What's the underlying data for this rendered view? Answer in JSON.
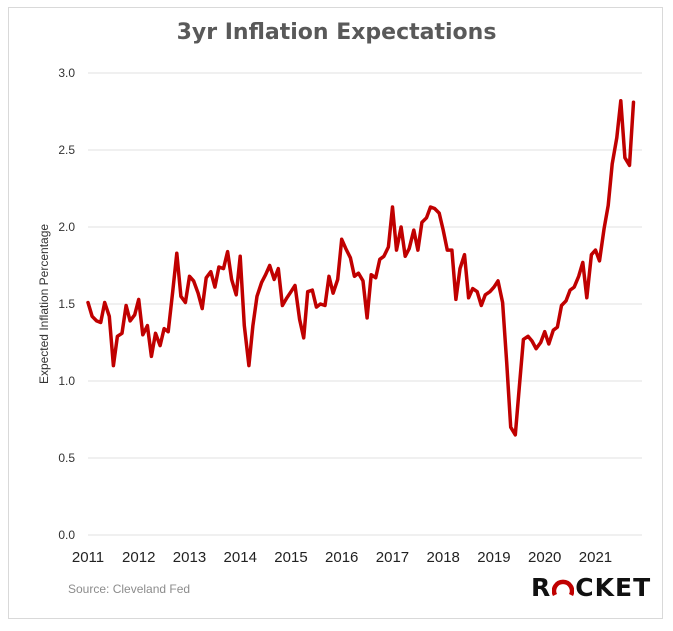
{
  "chart_data": {
    "type": "line",
    "title": "3yr Inflation Expectations",
    "ylabel": "Expected Inflation Percentage",
    "xlabel": "",
    "ylim": [
      0,
      3
    ],
    "yticks": [
      "0.0",
      "0.5",
      "1.0",
      "1.5",
      "2.0",
      "2.5",
      "3.0"
    ],
    "xticks": [
      "2011",
      "2012",
      "2013",
      "2014",
      "2015",
      "2016",
      "2017",
      "2018",
      "2019",
      "2020",
      "2021"
    ],
    "xlim": [
      2011,
      2021.917
    ],
    "grid": "horizontal",
    "series": [
      {
        "color": "#c00000",
        "points": [
          [
            2011.0,
            1.51
          ],
          [
            2011.08,
            1.42
          ],
          [
            2011.17,
            1.39
          ],
          [
            2011.25,
            1.38
          ],
          [
            2011.33,
            1.51
          ],
          [
            2011.42,
            1.42
          ],
          [
            2011.5,
            1.1
          ],
          [
            2011.58,
            1.29
          ],
          [
            2011.67,
            1.31
          ],
          [
            2011.75,
            1.49
          ],
          [
            2011.83,
            1.39
          ],
          [
            2011.92,
            1.43
          ],
          [
            2012.0,
            1.53
          ],
          [
            2012.08,
            1.3
          ],
          [
            2012.17,
            1.36
          ],
          [
            2012.25,
            1.16
          ],
          [
            2012.33,
            1.31
          ],
          [
            2012.42,
            1.23
          ],
          [
            2012.5,
            1.34
          ],
          [
            2012.58,
            1.32
          ],
          [
            2012.67,
            1.58
          ],
          [
            2012.75,
            1.83
          ],
          [
            2012.83,
            1.55
          ],
          [
            2012.92,
            1.51
          ],
          [
            2013.0,
            1.68
          ],
          [
            2013.08,
            1.65
          ],
          [
            2013.17,
            1.57
          ],
          [
            2013.25,
            1.47
          ],
          [
            2013.33,
            1.67
          ],
          [
            2013.42,
            1.71
          ],
          [
            2013.5,
            1.61
          ],
          [
            2013.58,
            1.74
          ],
          [
            2013.67,
            1.73
          ],
          [
            2013.75,
            1.84
          ],
          [
            2013.83,
            1.66
          ],
          [
            2013.92,
            1.56
          ],
          [
            2014.0,
            1.81
          ],
          [
            2014.08,
            1.36
          ],
          [
            2014.17,
            1.1
          ],
          [
            2014.25,
            1.36
          ],
          [
            2014.33,
            1.55
          ],
          [
            2014.42,
            1.64
          ],
          [
            2014.5,
            1.69
          ],
          [
            2014.58,
            1.75
          ],
          [
            2014.67,
            1.66
          ],
          [
            2014.75,
            1.73
          ],
          [
            2014.83,
            1.49
          ],
          [
            2014.92,
            1.54
          ],
          [
            2015.0,
            1.58
          ],
          [
            2015.08,
            1.62
          ],
          [
            2015.17,
            1.4
          ],
          [
            2015.25,
            1.28
          ],
          [
            2015.33,
            1.58
          ],
          [
            2015.42,
            1.59
          ],
          [
            2015.5,
            1.48
          ],
          [
            2015.58,
            1.5
          ],
          [
            2015.67,
            1.49
          ],
          [
            2015.75,
            1.68
          ],
          [
            2015.83,
            1.57
          ],
          [
            2015.92,
            1.66
          ],
          [
            2016.0,
            1.92
          ],
          [
            2016.08,
            1.86
          ],
          [
            2016.17,
            1.8
          ],
          [
            2016.25,
            1.68
          ],
          [
            2016.33,
            1.7
          ],
          [
            2016.42,
            1.65
          ],
          [
            2016.5,
            1.41
          ],
          [
            2016.58,
            1.69
          ],
          [
            2016.67,
            1.67
          ],
          [
            2016.75,
            1.79
          ],
          [
            2016.83,
            1.81
          ],
          [
            2016.92,
            1.87
          ],
          [
            2017.0,
            2.13
          ],
          [
            2017.08,
            1.85
          ],
          [
            2017.17,
            2.0
          ],
          [
            2017.25,
            1.81
          ],
          [
            2017.33,
            1.86
          ],
          [
            2017.42,
            1.98
          ],
          [
            2017.5,
            1.85
          ],
          [
            2017.58,
            2.03
          ],
          [
            2017.67,
            2.06
          ],
          [
            2017.75,
            2.13
          ],
          [
            2017.83,
            2.12
          ],
          [
            2017.92,
            2.09
          ],
          [
            2018.0,
            1.98
          ],
          [
            2018.08,
            1.85
          ],
          [
            2018.17,
            1.85
          ],
          [
            2018.25,
            1.53
          ],
          [
            2018.33,
            1.73
          ],
          [
            2018.42,
            1.82
          ],
          [
            2018.5,
            1.54
          ],
          [
            2018.58,
            1.6
          ],
          [
            2018.67,
            1.58
          ],
          [
            2018.75,
            1.49
          ],
          [
            2018.83,
            1.56
          ],
          [
            2018.92,
            1.58
          ],
          [
            2019.0,
            1.61
          ],
          [
            2019.08,
            1.65
          ],
          [
            2019.17,
            1.51
          ],
          [
            2019.25,
            1.12
          ],
          [
            2019.33,
            0.7
          ],
          [
            2019.42,
            0.65
          ],
          [
            2019.5,
            0.96
          ],
          [
            2019.58,
            1.27
          ],
          [
            2019.67,
            1.29
          ],
          [
            2019.75,
            1.26
          ],
          [
            2019.83,
            1.21
          ],
          [
            2019.92,
            1.25
          ],
          [
            2020.0,
            1.32
          ],
          [
            2020.08,
            1.24
          ],
          [
            2020.17,
            1.33
          ],
          [
            2020.25,
            1.35
          ],
          [
            2020.33,
            1.49
          ],
          [
            2020.42,
            1.52
          ],
          [
            2020.5,
            1.59
          ],
          [
            2020.58,
            1.61
          ],
          [
            2020.67,
            1.68
          ],
          [
            2020.75,
            1.77
          ],
          [
            2020.83,
            1.54
          ],
          [
            2020.92,
            1.82
          ],
          [
            2021.0,
            1.85
          ],
          [
            2021.08,
            1.78
          ],
          [
            2021.17,
            1.99
          ],
          [
            2021.25,
            2.14
          ],
          [
            2021.33,
            2.41
          ],
          [
            2021.42,
            2.58
          ],
          [
            2021.5,
            2.82
          ],
          [
            2021.58,
            2.45
          ],
          [
            2021.67,
            2.4
          ],
          [
            2021.75,
            2.81
          ]
        ]
      }
    ]
  },
  "footer": {
    "source": "Source: Cleveland Fed",
    "logo_r": "R",
    "logo_rest": "CKET"
  }
}
